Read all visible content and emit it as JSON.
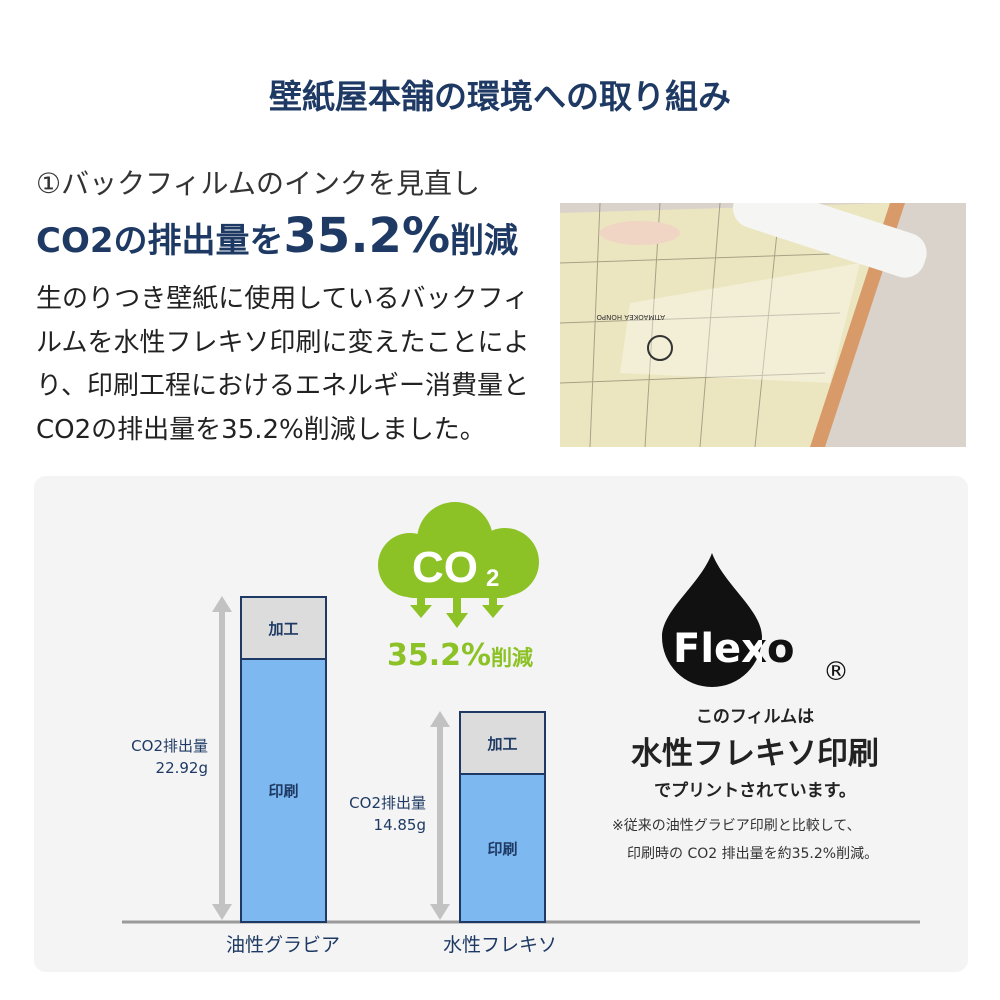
{
  "title": "壁紙屋本舗の環境への取り組み",
  "section": {
    "subtitle": "①バックフィルムのインクを見直し",
    "headline_pre": "CO2の排出量を",
    "headline_value": "35.2%",
    "headline_post": "削減",
    "body": "生のりつき壁紙に使用しているバックフィルムを水性フレキソ印刷に変えたことにより、印刷工程におけるエネルギー消費量とCO2の排出量を35.2%削減しました。"
  },
  "photo": {
    "print_text": "ATIMAOKEA HONPO"
  },
  "comparison": {
    "bars": [
      {
        "category": "油性グラビア",
        "total_label": "CO2排出量",
        "total_value": "22.92g",
        "total": 22.92,
        "top_segment": "加工",
        "bottom_segment": "印刷"
      },
      {
        "category": "水性フレキソ",
        "total_label": "CO2排出量",
        "total_value": "14.85g",
        "total": 14.85,
        "top_segment": "加工",
        "bottom_segment": "印刷"
      }
    ],
    "cloud_text": "CO",
    "cloud_sub": "2",
    "reduction": "35.2%",
    "reduction_suffix": "削減"
  },
  "flexo": {
    "logo_text": "Flexo",
    "registered": "®",
    "line1": "このフィルムは",
    "line2": "水性フレキソ印刷",
    "line3": "でプリントされています。",
    "note1": "※従来の油性グラビア印刷と比較して、",
    "note2": "印刷時の CO2 排出量を約35.2%削減。"
  },
  "colors": {
    "navy": "#1e3a64",
    "green": "#8cc226",
    "bar_blue": "#7db8f0",
    "segment_gray": "#dcdcdc"
  }
}
